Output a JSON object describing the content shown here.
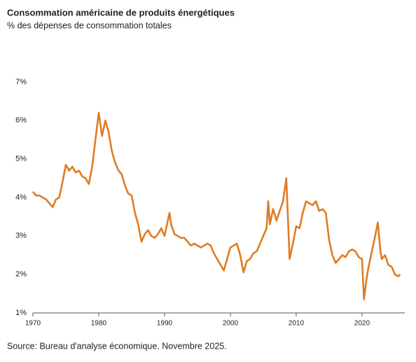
{
  "chart_data": {
    "type": "line",
    "title": "Consommation américaine de produits énergétiques",
    "subtitle": "% des dépenses de consommation totales",
    "source": "Source: Bureau d'analyse économique. Novembre 2025.",
    "x": [
      1970,
      1970.5,
      1971,
      1971.5,
      1972,
      1972.5,
      1973,
      1973.5,
      1974,
      1974.5,
      1975,
      1975.5,
      1976,
      1976.5,
      1977,
      1977.5,
      1978,
      1978.5,
      1979,
      1979.5,
      1980,
      1980.5,
      1981,
      1981.5,
      1982,
      1982.5,
      1983,
      1983.5,
      1984,
      1984.5,
      1985,
      1985.5,
      1986,
      1986.5,
      1987,
      1987.5,
      1988,
      1988.5,
      1989,
      1989.5,
      1990,
      1990.75,
      1991,
      1991.5,
      1992,
      1992.5,
      1993,
      1993.5,
      1994,
      1994.5,
      1995,
      1995.5,
      1996,
      1996.5,
      1997,
      1997.5,
      1998,
      1998.5,
      1999,
      1999.5,
      2000,
      2000.5,
      2001,
      2001.5,
      2002,
      2002.5,
      2003,
      2003.5,
      2004,
      2004.5,
      2005,
      2005.5,
      2005.75,
      2006,
      2006.5,
      2007,
      2007.5,
      2008,
      2008.5,
      2009,
      2009.5,
      2010,
      2010.5,
      2011,
      2011.5,
      2012,
      2012.5,
      2013,
      2013.5,
      2014,
      2014.5,
      2015,
      2015.5,
      2016,
      2016.5,
      2017,
      2017.5,
      2018,
      2018.5,
      2019,
      2019.5,
      2020,
      2020.3,
      2020.7,
      2021,
      2021.5,
      2022,
      2022.4,
      2022.8,
      2023,
      2023.5,
      2024,
      2024.5,
      2025,
      2025.5,
      2025.8
    ],
    "series": [
      {
        "color": "#e07b24",
        "values": [
          4.15,
          4.05,
          4.05,
          4.0,
          3.95,
          3.85,
          3.75,
          3.95,
          4.0,
          4.4,
          4.85,
          4.7,
          4.8,
          4.65,
          4.7,
          4.55,
          4.5,
          4.35,
          4.8,
          5.5,
          6.2,
          5.6,
          6.0,
          5.7,
          5.2,
          4.9,
          4.7,
          4.6,
          4.3,
          4.1,
          4.05,
          3.6,
          3.3,
          2.85,
          3.05,
          3.15,
          3.0,
          2.95,
          3.05,
          3.2,
          3.0,
          3.6,
          3.3,
          3.05,
          3.0,
          2.95,
          2.95,
          2.85,
          2.75,
          2.8,
          2.75,
          2.7,
          2.75,
          2.8,
          2.75,
          2.55,
          2.4,
          2.25,
          2.1,
          2.4,
          2.7,
          2.75,
          2.8,
          2.5,
          2.05,
          2.35,
          2.4,
          2.55,
          2.6,
          2.8,
          3.0,
          3.2,
          3.9,
          3.3,
          3.7,
          3.4,
          3.65,
          3.9,
          4.5,
          2.4,
          2.8,
          3.25,
          3.2,
          3.6,
          3.9,
          3.85,
          3.8,
          3.9,
          3.65,
          3.7,
          3.6,
          2.9,
          2.5,
          2.3,
          2.4,
          2.5,
          2.45,
          2.6,
          2.65,
          2.6,
          2.45,
          2.4,
          1.35,
          1.9,
          2.2,
          2.6,
          3.0,
          3.35,
          2.6,
          2.4,
          2.5,
          2.25,
          2.2,
          2.0,
          1.95,
          2.0
        ]
      }
    ],
    "xlim": [
      1970,
      2026.5
    ],
    "xticks": [
      1970,
      1980,
      1990,
      2000,
      2010,
      2020
    ],
    "ylim": [
      1,
      7
    ],
    "yticks": [
      {
        "value": 1,
        "label": "1%"
      },
      {
        "value": 2,
        "label": "2%"
      },
      {
        "value": 3,
        "label": "3%"
      },
      {
        "value": 4,
        "label": "4%"
      },
      {
        "value": 5,
        "label": "5%"
      },
      {
        "value": 6,
        "label": "6%"
      },
      {
        "value": 7,
        "label": "7%"
      }
    ],
    "grid": false
  }
}
